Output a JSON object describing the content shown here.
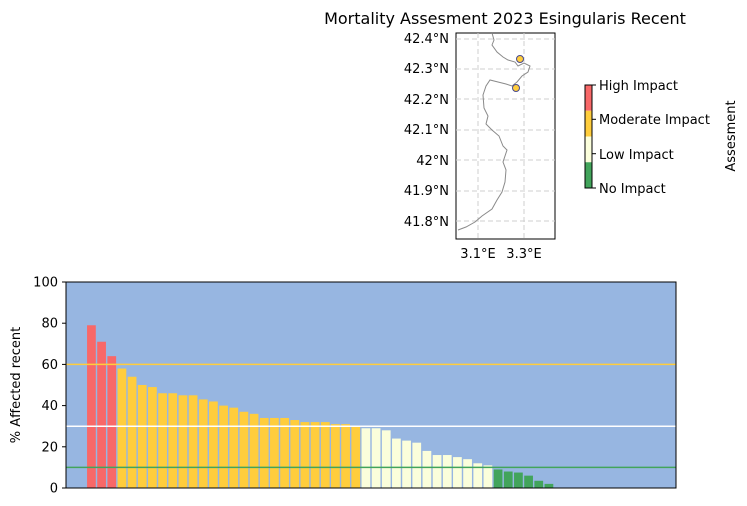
{
  "title": "Mortality Assesment 2023 Esingularis Recent",
  "colors": {
    "high": "#f86868",
    "moderate": "#ffcd3c",
    "low": "#fbfedb",
    "none": "#42a45b",
    "plot_bg": "#97b6e1",
    "map_line": "#8a8a8a",
    "grid": "#cfcfcf",
    "site_fill": "#ffcd3c",
    "site_edge": "#4a4a8c"
  },
  "map": {
    "lat_ticks": [
      "42.4°N",
      "42.3°N",
      "42.2°N",
      "42.1°N",
      "42°N",
      "41.9°N",
      "41.8°N"
    ],
    "lon_ticks": [
      "3.1°E",
      "3.3°E"
    ]
  },
  "legend": {
    "title": "Assesment",
    "labels": [
      "High Impact",
      "Moderate Impact",
      "Low Impact",
      "No Impact"
    ]
  },
  "chart_data": {
    "type": "bar",
    "title": "",
    "xlabel": "",
    "ylabel": "% Affected recent",
    "ylim": [
      0,
      100
    ],
    "yticks": [
      0,
      20,
      40,
      60,
      80,
      100
    ],
    "grid": false,
    "thresholds": [
      {
        "value": 60,
        "color": "#ffcd3c"
      },
      {
        "value": 30,
        "color": "#ffffff"
      },
      {
        "value": 10,
        "color": "#42a45b"
      }
    ],
    "values": [
      79,
      71,
      64,
      58,
      54,
      50,
      49,
      46,
      46,
      45,
      45,
      43,
      42,
      40,
      39,
      37,
      36,
      34,
      34,
      34,
      33,
      32,
      32,
      32,
      31,
      31,
      30,
      29,
      29,
      28,
      24,
      23,
      22,
      18,
      16,
      16,
      15,
      14,
      12,
      11,
      9,
      8,
      7.5,
      6,
      3.5,
      2
    ],
    "n_categories": 60,
    "start_index": 2
  }
}
